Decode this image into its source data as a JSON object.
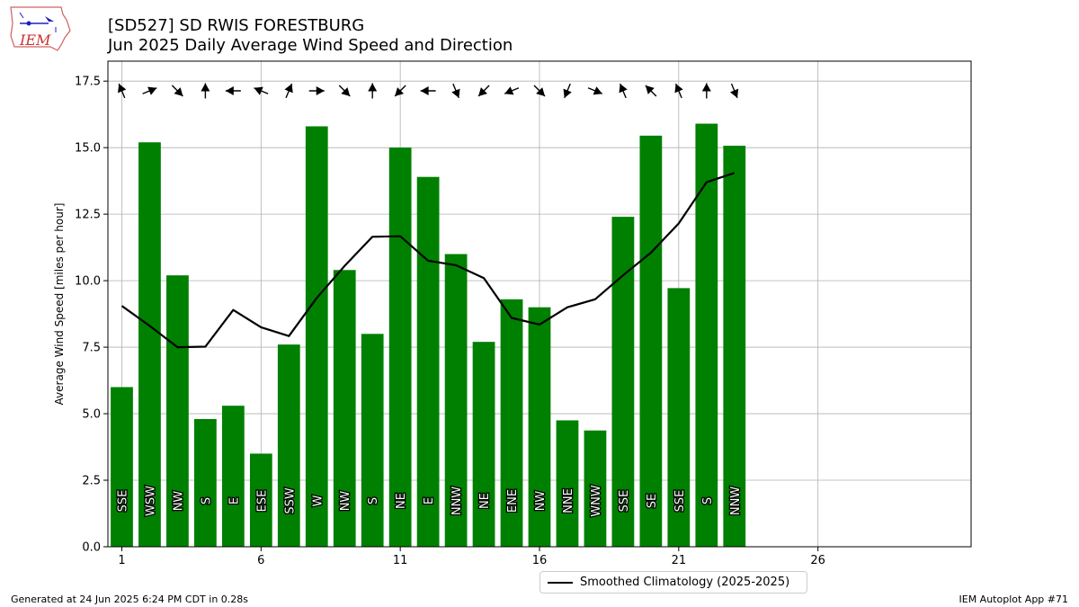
{
  "header": {
    "title_line1": "[SD527] SD RWIS FORESTBURG",
    "title_line2": "Jun 2025 Daily Average Wind Speed and Direction"
  },
  "logo": {
    "text": "IEM"
  },
  "footer": {
    "left": "Generated at 24 Jun 2025 6:24 PM CDT in 0.28s",
    "right": "IEM Autoplot App #71"
  },
  "legend": {
    "label": "Smoothed Climatology (2025-2025)"
  },
  "colors": {
    "bar": "#008000",
    "line": "#000000",
    "grid": "#b0b0b0"
  },
  "chart_data": {
    "type": "bar",
    "ylabel": "Average Wind Speed [miles per hour]",
    "xlabel": "",
    "xlim": [
      0.5,
      31.5
    ],
    "ylim": [
      0,
      18.25
    ],
    "x_ticks": [
      1,
      6,
      11,
      16,
      21,
      26
    ],
    "y_ticks": [
      0.0,
      2.5,
      5.0,
      7.5,
      10.0,
      12.5,
      15.0,
      17.5
    ],
    "grid": true,
    "legend_position": "bottom-center",
    "days": [
      1,
      2,
      3,
      4,
      5,
      6,
      7,
      8,
      9,
      10,
      11,
      12,
      13,
      14,
      15,
      16,
      17,
      18,
      19,
      20,
      21,
      22,
      23
    ],
    "values": [
      6.0,
      15.2,
      10.2,
      4.8,
      5.3,
      3.5,
      7.6,
      15.8,
      10.4,
      8.0,
      15.0,
      13.9,
      11.0,
      7.7,
      9.3,
      9.0,
      4.75,
      4.37,
      12.4,
      15.45,
      9.72,
      15.9,
      15.07
    ],
    "directions": [
      "SSE",
      "WSW",
      "NW",
      "S",
      "E",
      "ESE",
      "SSW",
      "W",
      "NW",
      "S",
      "NE",
      "E",
      "NNW",
      "NE",
      "ENE",
      "NW",
      "NNE",
      "WNW",
      "SSE",
      "SE",
      "SSE",
      "S",
      "NNW"
    ],
    "series": [
      {
        "name": "Smoothed Climatology (2025-2025)",
        "values": [
          9.05,
          8.3,
          7.5,
          7.52,
          8.9,
          8.25,
          7.92,
          9.35,
          10.55,
          11.65,
          11.67,
          10.75,
          10.58,
          10.1,
          8.6,
          8.35,
          9.0,
          9.3,
          10.2,
          11.05,
          12.15,
          13.7,
          14.05
        ]
      }
    ]
  }
}
